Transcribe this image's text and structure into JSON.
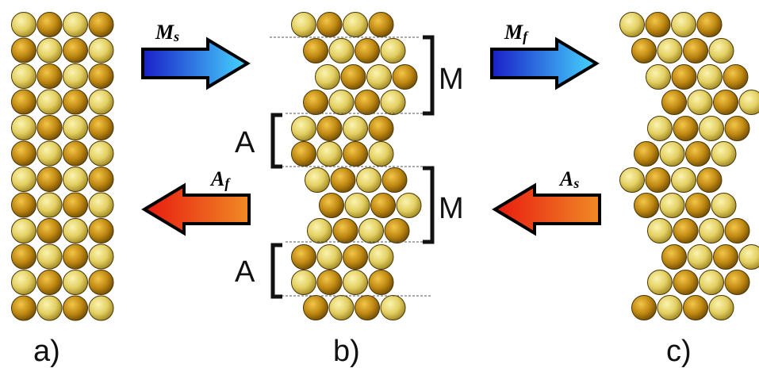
{
  "panels": {
    "a": {
      "caption": "a)"
    },
    "b": {
      "caption": "b)",
      "brackets": [
        {
          "label": "M"
        },
        {
          "label": "A"
        },
        {
          "label": "M"
        },
        {
          "label": "A"
        }
      ]
    },
    "c": {
      "caption": "c)"
    }
  },
  "arrows": {
    "ms": {
      "label_main": "M",
      "label_sub": "s",
      "direction": "right",
      "color_start": "#1a2fd6",
      "color_end": "#3fd0ff"
    },
    "mf": {
      "label_main": "M",
      "label_sub": "f",
      "direction": "right",
      "color_start": "#1a2fd6",
      "color_end": "#3fd0ff"
    },
    "af": {
      "label_main": "A",
      "label_sub": "f",
      "direction": "left",
      "color_start": "#e8201a",
      "color_end": "#f07a20"
    },
    "as": {
      "label_main": "A",
      "label_sub": "s",
      "direction": "left",
      "color_start": "#e8201a",
      "color_end": "#f07a20"
    }
  },
  "colors": {
    "atom_dark": "#b8860b",
    "atom_light": "#e8d36a",
    "outline": "#3a2a05"
  }
}
